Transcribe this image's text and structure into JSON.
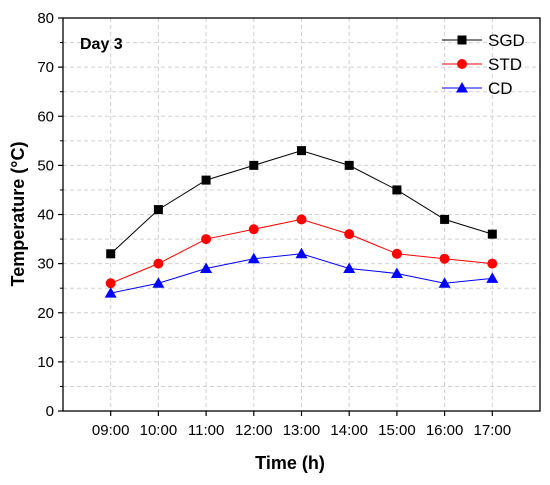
{
  "chart_data": {
    "type": "line",
    "annotation": "Day 3",
    "x": [
      "09:00",
      "10:00",
      "11:00",
      "12:00",
      "13:00",
      "14:00",
      "15:00",
      "16:00",
      "17:00"
    ],
    "xlabel": "Time (h)",
    "ylabel": "Temperature (°C)",
    "ylim": [
      0,
      80
    ],
    "yticks": [
      "0",
      "10",
      "20",
      "30",
      "40",
      "50",
      "60",
      "70",
      "80"
    ],
    "grid": true,
    "legend_position": "top-right",
    "series": [
      {
        "name": "SGD",
        "values": [
          32,
          41,
          47,
          50,
          53,
          50,
          45,
          39,
          36
        ],
        "color": "#000000",
        "marker": "square"
      },
      {
        "name": "STD",
        "values": [
          26,
          30,
          35,
          37,
          39,
          36,
          32,
          31,
          30
        ],
        "color": "#ff0000",
        "marker": "circle"
      },
      {
        "name": "CD",
        "values": [
          24,
          26,
          29,
          31,
          32,
          29,
          28,
          26,
          27
        ],
        "color": "#0000ff",
        "marker": "triangle"
      }
    ]
  }
}
